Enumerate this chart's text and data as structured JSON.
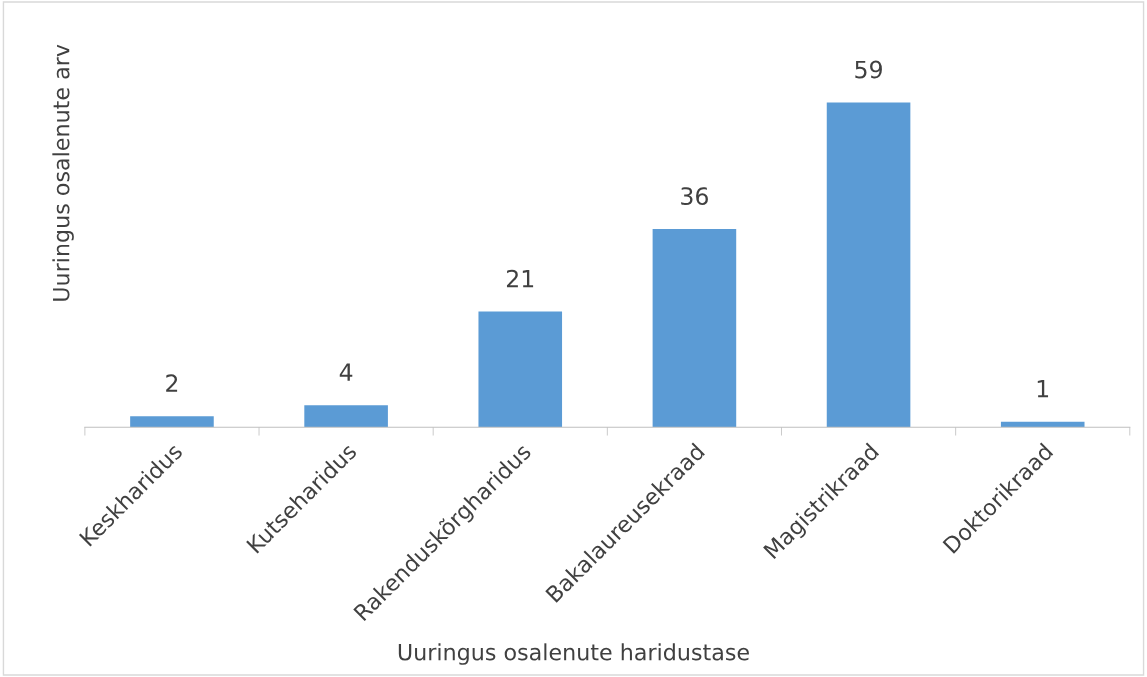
{
  "chart_data": {
    "type": "bar",
    "xlabel": "Uuringus osalenute haridustase",
    "ylabel": "Uuringus osalenute arv",
    "categories": [
      "Keskharidus",
      "Kutseharidus",
      "Rakenduskõrgharidus",
      "Bakalaureusekraad",
      "Magistrikraad",
      "Doktorikraad"
    ],
    "values": [
      2,
      4,
      21,
      36,
      59,
      1
    ],
    "color": "#5b9bd5",
    "data_labels": true,
    "grid": false,
    "legend": false,
    "tick_labels": "x"
  }
}
